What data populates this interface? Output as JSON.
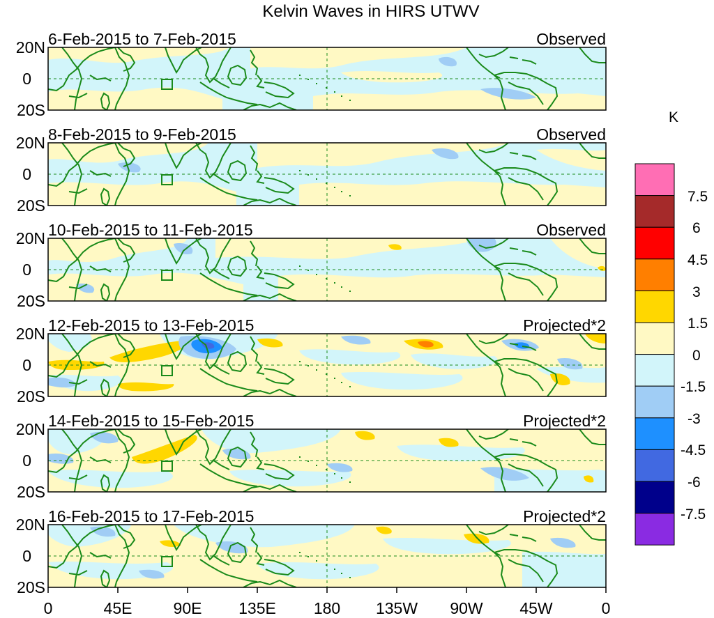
{
  "figure": {
    "title": "Kelvin Waves in HIRS UTWV",
    "unit_label": "K"
  },
  "panels": [
    {
      "date_range": "6-Feb-2015 to 7-Feb-2015",
      "label": "Observed"
    },
    {
      "date_range": "8-Feb-2015 to 9-Feb-2015",
      "label": "Observed"
    },
    {
      "date_range": "10-Feb-2015 to 11-Feb-2015",
      "label": "Observed"
    },
    {
      "date_range": "12-Feb-2015 to 13-Feb-2015",
      "label": "Projected*2"
    },
    {
      "date_range": "14-Feb-2015 to 15-Feb-2015",
      "label": "Projected*2"
    },
    {
      "date_range": "16-Feb-2015 to 17-Feb-2015",
      "label": "Projected*2"
    }
  ],
  "lat_ticks": [
    "20N",
    "0",
    "20S"
  ],
  "lon_ticks": [
    "0",
    "45E",
    "90E",
    "135E",
    "180",
    "135W",
    "90W",
    "45W",
    "0"
  ],
  "colorbar": {
    "tick_labels": [
      "7.5",
      "6",
      "4.5",
      "3",
      "1.5",
      "0",
      "-1.5",
      "-3",
      "-4.5",
      "-6",
      "-7.5"
    ],
    "colors": [
      "#ff6eb4",
      "#a52a2a",
      "#ff0000",
      "#ff7f00",
      "#ffd700",
      "#fff9c4",
      "#d2f5fa",
      "#a0cdf5",
      "#1e90ff",
      "#4169e1",
      "#00008b",
      "#8a2be2"
    ]
  },
  "colors": {
    "coastline": "#1a8a1a",
    "background_field": "#d2f5fa"
  }
}
